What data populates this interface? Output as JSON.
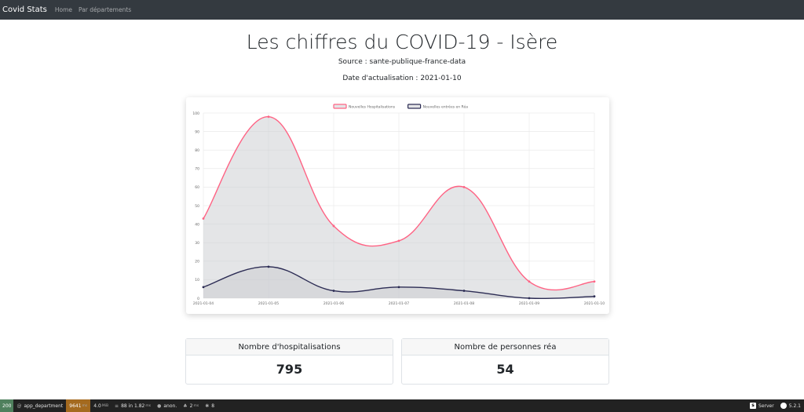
{
  "navbar": {
    "brand": "Covid Stats",
    "links": [
      "Home",
      "Par départements"
    ]
  },
  "header": {
    "title": "Les chiffres du COVID-19 - Isère",
    "source": "Source : sante-publique-france-data",
    "update": "Date d'actualisation : 2021-01-10"
  },
  "chart_data": {
    "type": "line",
    "categories": [
      "2021-01-04",
      "2021-01-05",
      "2021-01-06",
      "2021-01-07",
      "2021-01-08",
      "2021-01-09",
      "2021-01-10"
    ],
    "series": [
      {
        "name": "Nouvelles Hospitalisations",
        "values": [
          43,
          98,
          39,
          31,
          60,
          9,
          9
        ],
        "color": "#ff6384",
        "fill": "rgba(201,203,207,0.5)"
      },
      {
        "name": "Nouvelles entrées en Réa",
        "values": [
          6,
          17,
          4,
          6,
          4,
          0,
          1
        ],
        "color": "#2c2c54",
        "fill": "rgba(201,203,207,0.5)"
      }
    ],
    "ylim": [
      0,
      100
    ],
    "yticks": [
      0,
      10,
      20,
      30,
      40,
      50,
      60,
      70,
      80,
      90,
      100
    ],
    "grid": true,
    "legend": "top"
  },
  "stats": {
    "hosp_label": "Nombre d'hospitalisations",
    "hosp_value": "795",
    "rea_label": "Nombre de personnes réa",
    "rea_value": "54"
  },
  "toolbar": {
    "status": "200",
    "route": "app_department",
    "time": "9641",
    "time_unit": "ms",
    "memory": "4.0",
    "memory_unit": "MiB",
    "db_queries": "88",
    "db_text": "in 1.82",
    "db_unit": "ms",
    "user": "anon.",
    "twig_time": "2",
    "twig_unit": "ms",
    "assets": "8",
    "server": "Server",
    "version": "5.2.1"
  }
}
